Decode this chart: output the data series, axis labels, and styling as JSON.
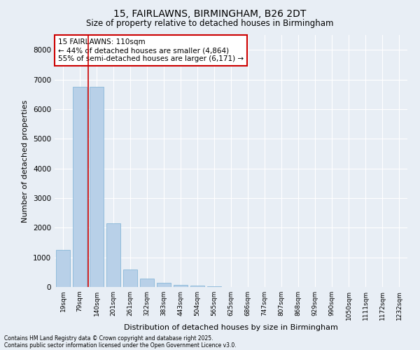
{
  "title1": "15, FAIRLAWNS, BIRMINGHAM, B26 2DT",
  "title2": "Size of property relative to detached houses in Birmingham",
  "xlabel": "Distribution of detached houses by size in Birmingham",
  "ylabel": "Number of detached properties",
  "categories": [
    "19sqm",
    "79sqm",
    "140sqm",
    "201sqm",
    "261sqm",
    "322sqm",
    "383sqm",
    "443sqm",
    "504sqm",
    "565sqm",
    "625sqm",
    "686sqm",
    "747sqm",
    "807sqm",
    "868sqm",
    "929sqm",
    "990sqm",
    "1050sqm",
    "1111sqm",
    "1172sqm",
    "1232sqm"
  ],
  "values": [
    1250,
    6750,
    6750,
    2150,
    600,
    280,
    130,
    65,
    40,
    20,
    8,
    4,
    4,
    2,
    2,
    1,
    1,
    1,
    0,
    0,
    0
  ],
  "bar_color": "#b8d0e8",
  "bar_edge_color": "#7aafd4",
  "bg_color": "#e8eef5",
  "grid_color": "#ffffff",
  "vline_color": "#cc0000",
  "vline_x": 1.5,
  "annotation_text": "15 FAIRLAWNS: 110sqm\n← 44% of detached houses are smaller (4,864)\n55% of semi-detached houses are larger (6,171) →",
  "annotation_box_color": "#ffffff",
  "annotation_box_edge": "#cc0000",
  "ylim_max": 8500,
  "yticks": [
    0,
    1000,
    2000,
    3000,
    4000,
    5000,
    6000,
    7000,
    8000
  ],
  "footnote1": "Contains HM Land Registry data © Crown copyright and database right 2025.",
  "footnote2": "Contains public sector information licensed under the Open Government Licence v3.0."
}
